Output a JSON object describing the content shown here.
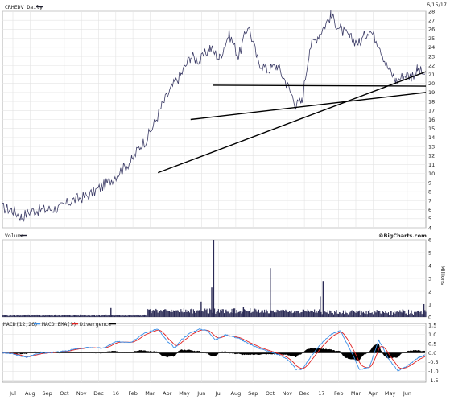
{
  "chart_data": [
    {
      "type": "line",
      "title": "CRHEDV Daily",
      "date_label": "6/15/17",
      "yticks": [
        4,
        5,
        6,
        7,
        8,
        9,
        10,
        11,
        12,
        13,
        14,
        15,
        16,
        17,
        18,
        19,
        20,
        21,
        22,
        23,
        24,
        25,
        26,
        27,
        28
      ],
      "ylim": [
        4,
        28
      ],
      "grid": true,
      "price_keypoints": [
        [
          0,
          6.2
        ],
        [
          10,
          6.0
        ],
        [
          20,
          5.2
        ],
        [
          30,
          5.9
        ],
        [
          45,
          6.0
        ],
        [
          60,
          6.2
        ],
        [
          72,
          7.0
        ],
        [
          90,
          7.6
        ],
        [
          110,
          9.0
        ],
        [
          125,
          10.5
        ],
        [
          135,
          11.5
        ],
        [
          143,
          13.0
        ],
        [
          150,
          13.8
        ],
        [
          158,
          15.5
        ],
        [
          166,
          17.5
        ],
        [
          176,
          19.5
        ],
        [
          186,
          21.0
        ],
        [
          196,
          23.0
        ],
        [
          206,
          22.5
        ],
        [
          216,
          24.0
        ],
        [
          226,
          22.8
        ],
        [
          236,
          25.5
        ],
        [
          246,
          23.0
        ],
        [
          256,
          26.5
        ],
        [
          266,
          22.5
        ],
        [
          276,
          21.5
        ],
        [
          286,
          22.0
        ],
        [
          296,
          20.0
        ],
        [
          306,
          17.6
        ],
        [
          312,
          18.0
        ],
        [
          320,
          24.0
        ],
        [
          330,
          25.5
        ],
        [
          342,
          27.5
        ],
        [
          352,
          26.0
        ],
        [
          362,
          25.0
        ],
        [
          372,
          24.5
        ],
        [
          382,
          26.0
        ],
        [
          392,
          24.5
        ],
        [
          400,
          22.0
        ],
        [
          410,
          20.3
        ],
        [
          420,
          21.0
        ],
        [
          426,
          20.8
        ],
        [
          432,
          21.5
        ],
        [
          440,
          21.0
        ]
      ],
      "trendlines": [
        {
          "from": [
            162,
            10.1
          ],
          "to": [
            441,
            21.3
          ]
        },
        {
          "from": [
            196,
            16.0
          ],
          "to": [
            441,
            19.0
          ]
        },
        {
          "from": [
            219,
            19.8
          ],
          "to": [
            441,
            19.7
          ]
        }
      ]
    },
    {
      "type": "bar",
      "title": "Volume",
      "credit": "©BigCharts.com",
      "unit_label": "Millions",
      "yticks": [
        0,
        1,
        2,
        3,
        4,
        5,
        6
      ],
      "ylim": [
        0,
        6
      ],
      "spikes": [
        {
          "x": 220,
          "value": 6.0
        },
        {
          "x": 218,
          "value": 2.3
        },
        {
          "x": 279,
          "value": 3.8
        },
        {
          "x": 334,
          "value": 2.8
        },
        {
          "x": 331,
          "value": 1.6
        },
        {
          "x": 207,
          "value": 1.2
        },
        {
          "x": 113,
          "value": 0.7
        },
        {
          "x": 251,
          "value": 0.8
        },
        {
          "x": 417,
          "value": 0.6
        },
        {
          "x": 439,
          "value": 1.0
        }
      ]
    },
    {
      "type": "line",
      "title": "MACD(12,26)",
      "legend": [
        "MACD EMA(9)",
        "Divergence"
      ],
      "colors": {
        "macd": "#3a8fe8",
        "signal": "#e02020",
        "divergence": "#000000"
      },
      "yticks": [
        -1.5,
        -1.0,
        -0.5,
        0.0,
        0.5,
        1.0,
        1.5
      ],
      "ylim": [
        -1.6,
        1.6
      ],
      "macd_keypoints": [
        [
          0,
          0
        ],
        [
          10,
          -0.05
        ],
        [
          25,
          -0.25
        ],
        [
          35,
          -0.05
        ],
        [
          45,
          0.0
        ],
        [
          60,
          0.05
        ],
        [
          75,
          0.2
        ],
        [
          90,
          0.3
        ],
        [
          105,
          0.25
        ],
        [
          118,
          0.6
        ],
        [
          125,
          0.6
        ],
        [
          135,
          0.6
        ],
        [
          145,
          1.0
        ],
        [
          155,
          1.2
        ],
        [
          162,
          1.3
        ],
        [
          172,
          0.6
        ],
        [
          180,
          0.25
        ],
        [
          186,
          0.7
        ],
        [
          196,
          1.1
        ],
        [
          206,
          1.3
        ],
        [
          214,
          1.2
        ],
        [
          222,
          0.7
        ],
        [
          232,
          1.0
        ],
        [
          246,
          0.8
        ],
        [
          256,
          0.5
        ],
        [
          270,
          0.2
        ],
        [
          285,
          -0.05
        ],
        [
          296,
          -0.3
        ],
        [
          306,
          -0.9
        ],
        [
          312,
          -0.9
        ],
        [
          320,
          -0.3
        ],
        [
          330,
          0.4
        ],
        [
          342,
          1.0
        ],
        [
          352,
          1.2
        ],
        [
          362,
          0.2
        ],
        [
          372,
          -0.9
        ],
        [
          382,
          -0.8
        ],
        [
          392,
          0.7
        ],
        [
          402,
          -0.3
        ],
        [
          412,
          -1.0
        ],
        [
          422,
          -0.7
        ],
        [
          432,
          -0.3
        ],
        [
          440,
          -0.1
        ]
      ]
    }
  ],
  "x_axis": {
    "labels": [
      "Jul",
      "Aug",
      "Sep",
      "Oct",
      "Nov",
      "Dec",
      "16",
      "Feb",
      "Mar",
      "Apr",
      "May",
      "Jun",
      "Jul",
      "Aug",
      "Sep",
      "Oct",
      "Nov",
      "Dec",
      "17",
      "Feb",
      "Mar",
      "Apr",
      "May",
      "Jun"
    ]
  }
}
